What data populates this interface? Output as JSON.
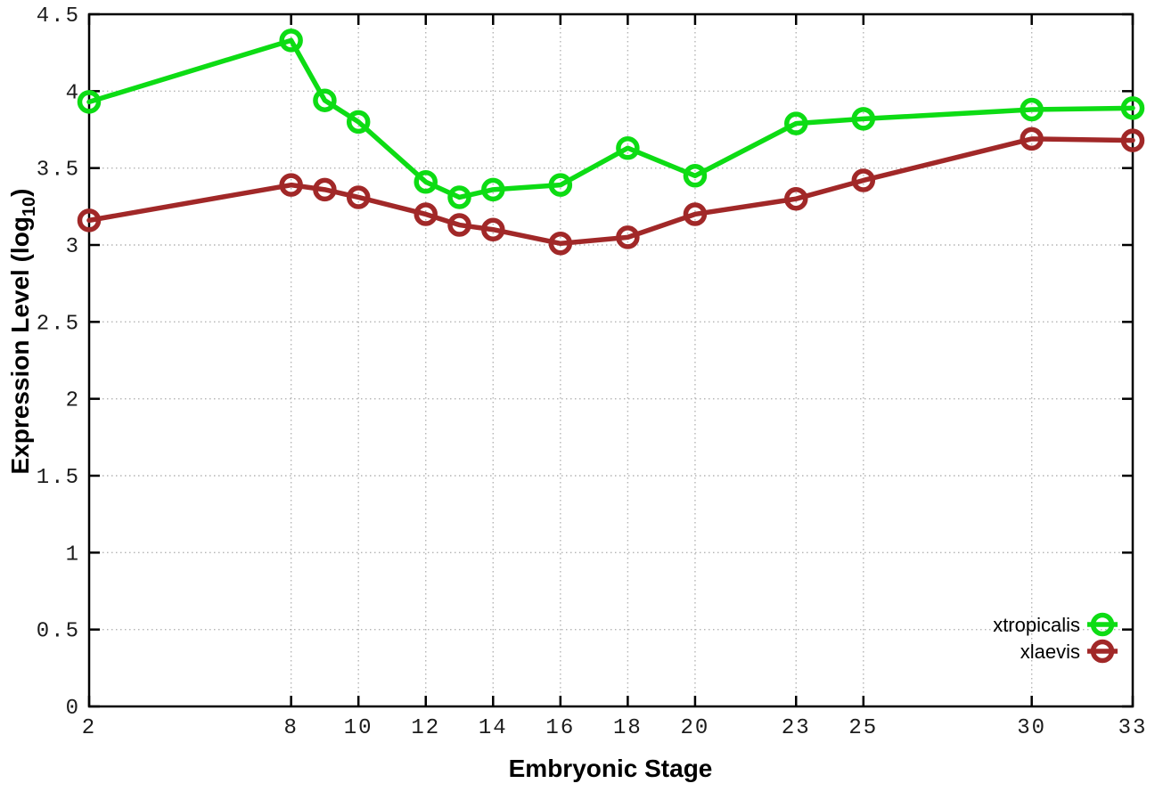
{
  "chart_data": {
    "type": "line",
    "title": "",
    "xlabel": "Embryonic Stage",
    "ylabel": "Expression Level (log10)",
    "ylabel_parts": {
      "main": "Expression Level (log",
      "sub": "10",
      "end": ")"
    },
    "x": [
      2,
      8,
      9,
      10,
      12,
      13,
      14,
      16,
      18,
      20,
      23,
      25,
      30,
      33
    ],
    "xticks": [
      2,
      8,
      10,
      12,
      14,
      16,
      18,
      20,
      23,
      25,
      30,
      33
    ],
    "yticks": [
      0,
      0.5,
      1,
      1.5,
      2,
      2.5,
      3,
      3.5,
      4,
      4.5
    ],
    "xlim": [
      2,
      33
    ],
    "ylim": [
      0,
      4.5
    ],
    "grid": true,
    "legend_position": "bottom-right",
    "series": [
      {
        "name": "xtropicalis",
        "color": "#0ddc14",
        "values": [
          3.93,
          4.33,
          3.94,
          3.8,
          3.41,
          3.31,
          3.36,
          3.39,
          3.63,
          3.45,
          3.79,
          3.82,
          3.88,
          3.89
        ]
      },
      {
        "name": "xlaevis",
        "color": "#a12828",
        "values": [
          3.16,
          3.39,
          3.36,
          3.31,
          3.2,
          3.13,
          3.1,
          3.01,
          3.05,
          3.2,
          3.3,
          3.42,
          3.69,
          3.68
        ]
      }
    ],
    "style": {
      "axis_color": "#000000",
      "grid_color": "#b4b4b4",
      "tick_label_color": "#1c1c1c",
      "background": "#ffffff"
    }
  }
}
